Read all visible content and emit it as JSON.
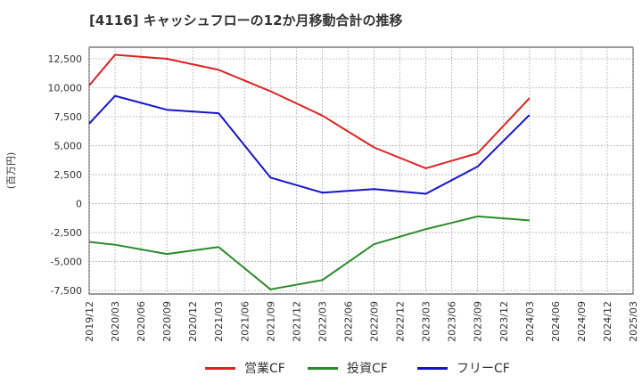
{
  "chart_data": {
    "type": "line",
    "title": "[4116]  キャッシュフローの12か月移動合計の推移",
    "ylabel": "(百万円)",
    "xlabel": "",
    "ylim": [
      -7800,
      13500
    ],
    "grid": true,
    "legend_position": "bottom",
    "y_ticks": [
      12500,
      10000,
      7500,
      5000,
      2500,
      0,
      -2500,
      -5000,
      -7500
    ],
    "y_tick_labels": [
      "12,500",
      "10,000",
      "7,500",
      "5,000",
      "2,500",
      "0",
      "-2,500",
      "-5,000",
      "-7,500"
    ],
    "categories": [
      "2019/12",
      "2020/03",
      "2020/06",
      "2020/09",
      "2020/12",
      "2021/03",
      "2021/06",
      "2021/09",
      "2021/12",
      "2022/03",
      "2022/06",
      "2022/09",
      "2022/12",
      "2023/03",
      "2023/06",
      "2023/09",
      "2023/12",
      "2024/03",
      "2024/06",
      "2024/09",
      "2024/12",
      "2025/03"
    ],
    "series": [
      {
        "name": "営業CF",
        "color": "#dd2222",
        "points": [
          {
            "x": "2019/12",
            "y": 10200
          },
          {
            "x": "2020/03",
            "y": 12850
          },
          {
            "x": "2020/09",
            "y": 12500
          },
          {
            "x": "2021/03",
            "y": 11550
          },
          {
            "x": "2021/09",
            "y": 9700
          },
          {
            "x": "2022/03",
            "y": 7600
          },
          {
            "x": "2022/09",
            "y": 4850
          },
          {
            "x": "2023/03",
            "y": 3050
          },
          {
            "x": "2023/09",
            "y": 4350
          },
          {
            "x": "2024/03",
            "y": 9100
          }
        ]
      },
      {
        "name": "投資CF",
        "color": "#2a8a2a",
        "points": [
          {
            "x": "2019/12",
            "y": -3300
          },
          {
            "x": "2020/03",
            "y": -3550
          },
          {
            "x": "2020/09",
            "y": -4350
          },
          {
            "x": "2021/03",
            "y": -3750
          },
          {
            "x": "2021/09",
            "y": -7400
          },
          {
            "x": "2022/03",
            "y": -6600
          },
          {
            "x": "2022/09",
            "y": -3500
          },
          {
            "x": "2023/03",
            "y": -2200
          },
          {
            "x": "2023/09",
            "y": -1100
          },
          {
            "x": "2024/03",
            "y": -1450
          }
        ]
      },
      {
        "name": "フリーCF",
        "color": "#1414cc",
        "points": [
          {
            "x": "2019/12",
            "y": 6900
          },
          {
            "x": "2020/03",
            "y": 9300
          },
          {
            "x": "2020/09",
            "y": 8100
          },
          {
            "x": "2021/03",
            "y": 7800
          },
          {
            "x": "2021/09",
            "y": 2250
          },
          {
            "x": "2022/03",
            "y": 950
          },
          {
            "x": "2022/09",
            "y": 1250
          },
          {
            "x": "2023/03",
            "y": 850
          },
          {
            "x": "2023/09",
            "y": 3200
          },
          {
            "x": "2024/03",
            "y": 7650
          }
        ]
      }
    ]
  }
}
